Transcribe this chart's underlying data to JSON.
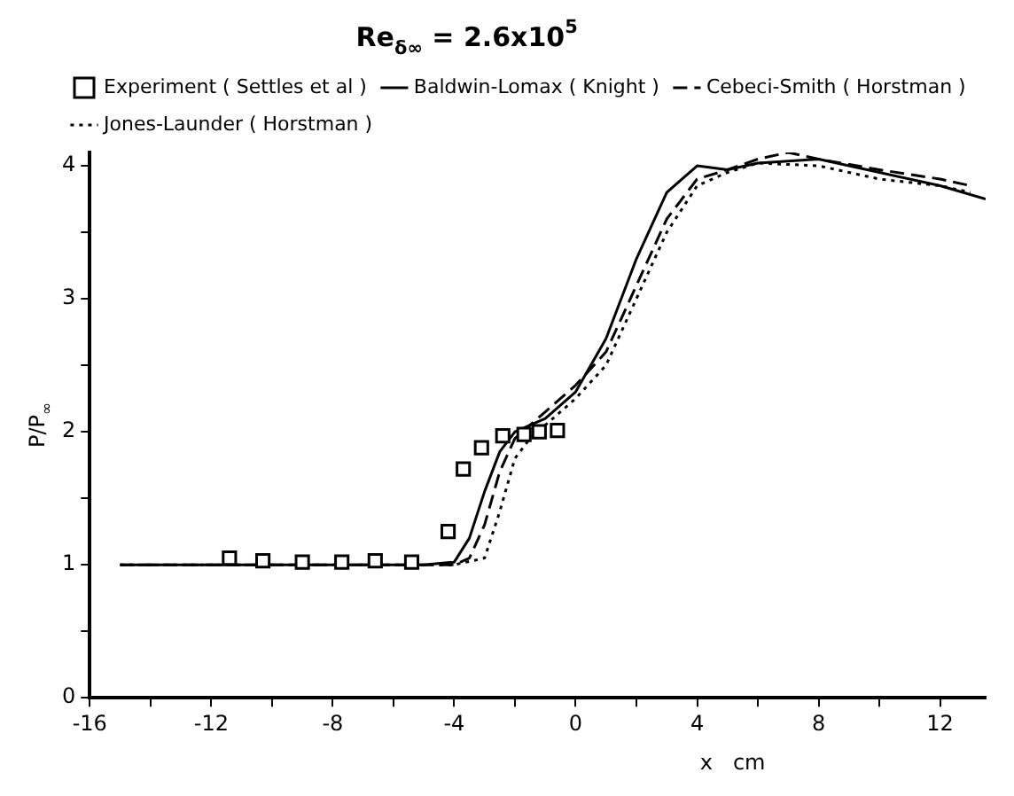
{
  "chart_data": {
    "type": "line",
    "title": "Re$_{δ∞}$ = 2.6x10$^{5}$",
    "xlabel": "x   cm",
    "ylabel": "P/P$_{∞}$",
    "xlim": [
      -16,
      13.5
    ],
    "xticks": [
      -16,
      {
        "value": -14,
        "label": null
      },
      -12,
      {
        "value": -10,
        "label": null
      },
      -8,
      {
        "value": -6,
        "label": null
      },
      -4,
      {
        "value": -2,
        "label": null
      },
      0,
      {
        "value": 2,
        "label": null
      },
      4,
      {
        "value": 6,
        "label": null
      },
      8,
      {
        "value": 10,
        "label": null
      },
      12
    ],
    "ylim": [
      0,
      4.1
    ],
    "yticks": [
      0,
      {
        "value": 0.5,
        "label": null
      },
      1,
      {
        "value": 1.5,
        "label": null
      },
      2,
      {
        "value": 2.5,
        "label": null
      },
      3,
      {
        "value": 3.5,
        "label": null
      },
      4
    ],
    "grid": false,
    "legend": "top left",
    "series": [
      {
        "name": "Experiment ( Settles et al )",
        "type": "scatter",
        "marker": "square",
        "color": "#000000",
        "x": [
          -11.4,
          -10.3,
          -9.0,
          -7.7,
          -6.6,
          -5.4,
          -4.2,
          -3.7,
          -3.1,
          -2.4,
          -1.7,
          -1.2,
          -0.6
        ],
        "values": [
          1.05,
          1.03,
          1.02,
          1.02,
          1.03,
          1.02,
          1.25,
          1.72,
          1.88,
          1.97,
          1.98,
          2.0,
          2.01
        ]
      },
      {
        "name": "Baldwin-Lomax ( Knight )",
        "line_style": "solid",
        "marker": "none",
        "color": "#000000",
        "x": [
          -15,
          -5,
          -4,
          -3.5,
          -3,
          -2.5,
          -2,
          -1,
          0,
          1,
          2,
          3,
          4,
          5,
          6,
          8,
          10,
          12,
          13.5
        ],
        "values": [
          1,
          1,
          1.02,
          1.2,
          1.55,
          1.85,
          2.0,
          2.1,
          2.3,
          2.7,
          3.3,
          3.8,
          4.0,
          3.97,
          4.02,
          4.05,
          3.95,
          3.85,
          3.75
        ]
      },
      {
        "name": "Cebeci-Smith ( Horstman )",
        "line_style": "dashed",
        "marker": "none",
        "color": "#000000",
        "x": [
          -15,
          -4,
          -3.5,
          -3,
          -2.5,
          -2,
          -1,
          0,
          1,
          2,
          3,
          4,
          5,
          6,
          7,
          8,
          10,
          12,
          13
        ],
        "values": [
          1,
          1,
          1.05,
          1.3,
          1.7,
          1.95,
          2.15,
          2.35,
          2.6,
          3.1,
          3.6,
          3.9,
          3.97,
          4.05,
          4.1,
          4.05,
          3.97,
          3.9,
          3.85
        ]
      },
      {
        "name": "Jones-Launder ( Horstman )",
        "line_style": "dotted",
        "marker": "none",
        "color": "#000000",
        "x": [
          -15,
          -4,
          -3,
          -2.5,
          -2,
          -1.5,
          -1,
          0,
          1,
          2,
          3,
          4,
          5,
          6,
          8,
          10,
          12,
          13
        ],
        "values": [
          1,
          1,
          1.05,
          1.4,
          1.8,
          1.95,
          2.05,
          2.25,
          2.5,
          3.0,
          3.5,
          3.85,
          3.95,
          4.02,
          4.0,
          3.9,
          3.85,
          3.8
        ]
      }
    ]
  }
}
